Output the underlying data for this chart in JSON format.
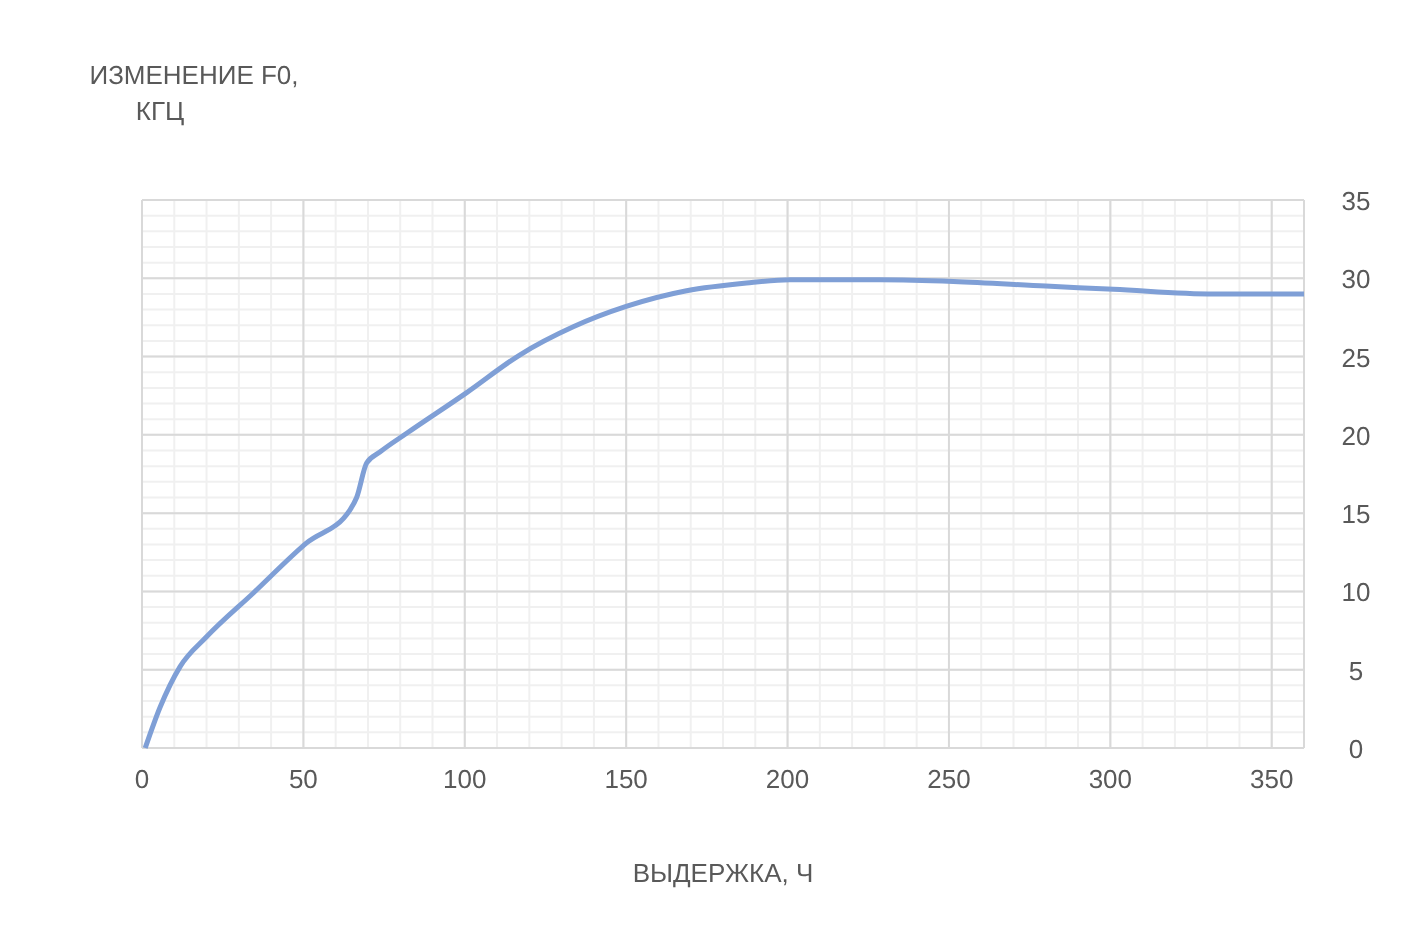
{
  "chart_data": {
    "type": "line",
    "xlabel": "ВЫДЕРЖКА, Ч",
    "ylabel": "ИЗМЕНЕНИЕ F0, КГЦ",
    "x": [
      1,
      5.6,
      11.8,
      20,
      34.5,
      51,
      64.4,
      66.5,
      69.6,
      73.7,
      82,
      100.6,
      117,
      133.6,
      150,
      168.7,
      187.3,
      200.7,
      228.6,
      251.4,
      280,
      301,
      332,
      360
    ],
    "series": [
      {
        "color": "#7f9fd6",
        "values": [
          0,
          2.6,
          5.2,
          7.1,
          9.9,
          13.1,
          15.2,
          16,
          18.2,
          18.9,
          20.1,
          22.7,
          25.1,
          26.9,
          28.2,
          29.2,
          29.7,
          29.9,
          29.9,
          29.8,
          29.5,
          29.3,
          29,
          29
        ]
      }
    ],
    "xlim": [
      0,
      360
    ],
    "xticks": [
      0,
      50,
      100,
      150,
      200,
      250,
      300,
      350
    ],
    "ylim": [
      0,
      35
    ],
    "yticks": [
      0,
      5,
      10,
      15,
      20,
      25,
      30,
      35
    ],
    "grid": true,
    "marker": "none",
    "line_style": "solid"
  }
}
